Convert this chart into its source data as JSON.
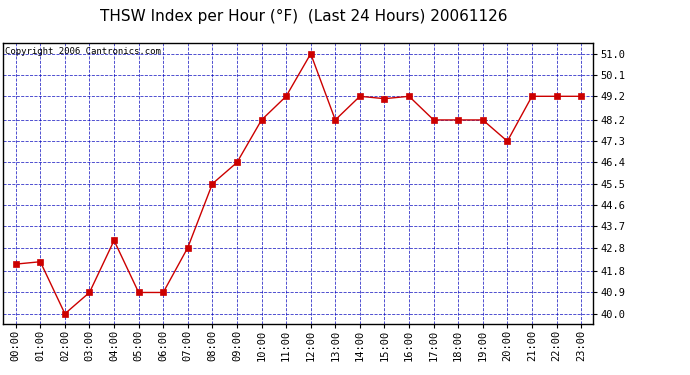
{
  "title": "THSW Index per Hour (°F)  (Last 24 Hours) 20061126",
  "copyright_text": "Copyright 2006 Cantronics.com",
  "x_labels": [
    "00:00",
    "01:00",
    "02:00",
    "03:00",
    "04:00",
    "05:00",
    "06:00",
    "07:00",
    "08:00",
    "09:00",
    "10:00",
    "11:00",
    "12:00",
    "13:00",
    "14:00",
    "15:00",
    "16:00",
    "17:00",
    "18:00",
    "19:00",
    "20:00",
    "21:00",
    "22:00",
    "23:00"
  ],
  "y_values": [
    42.1,
    42.2,
    40.0,
    40.9,
    43.1,
    40.9,
    40.9,
    42.8,
    45.5,
    46.4,
    48.2,
    49.2,
    51.0,
    48.2,
    49.2,
    49.1,
    49.2,
    48.2,
    48.2,
    48.2,
    47.3,
    49.2,
    49.2,
    49.2
  ],
  "ylim_min": 39.55,
  "ylim_max": 51.45,
  "y_ticks": [
    40.0,
    40.9,
    41.8,
    42.8,
    43.7,
    44.6,
    45.5,
    46.4,
    47.3,
    48.2,
    49.2,
    50.1,
    51.0
  ],
  "line_color": "#cc0000",
  "marker_color": "#cc0000",
  "fig_bg_color": "#ffffff",
  "plot_area_color": "#ffffff",
  "grid_color": "#0000bb",
  "border_color": "#000000",
  "title_color": "#000000",
  "copyright_color": "#000000",
  "title_fontsize": 11,
  "copyright_fontsize": 6.5,
  "tick_fontsize": 7.5,
  "marker_size": 4
}
